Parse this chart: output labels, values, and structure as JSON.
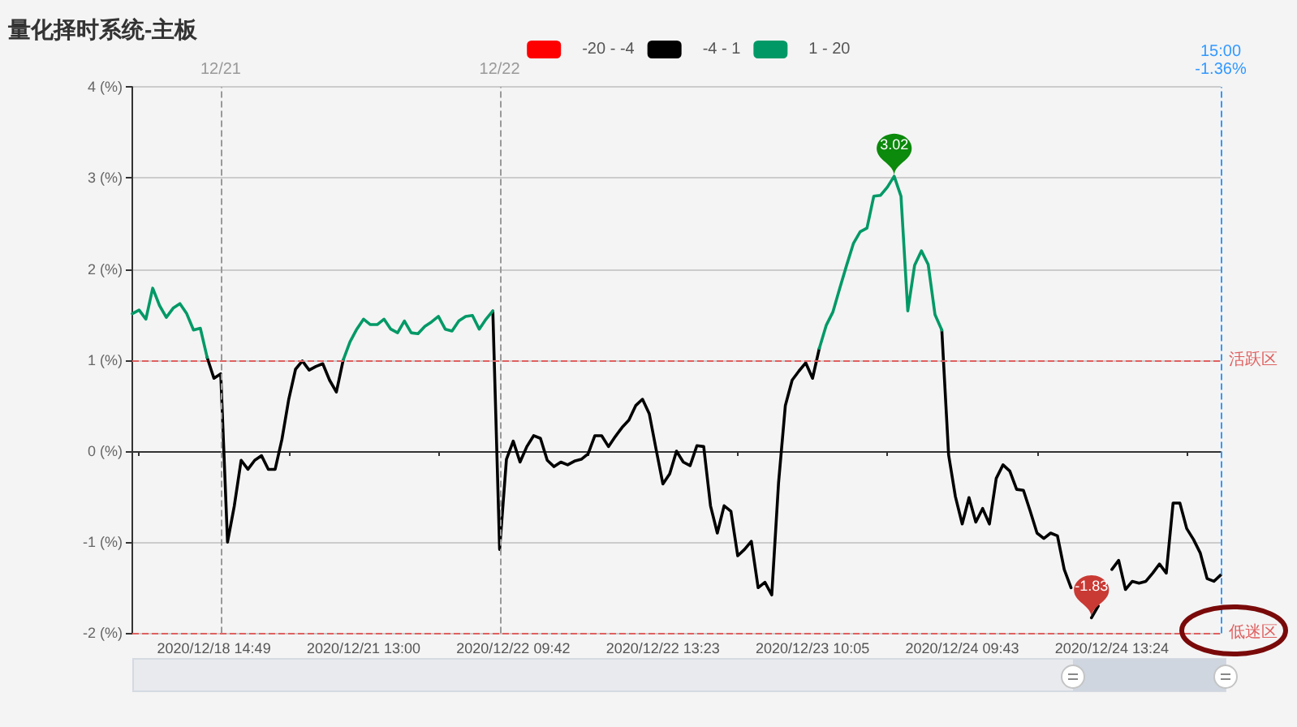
{
  "chart_data": {
    "type": "line",
    "title": "量化择时系统-主板",
    "categories": [
      null,
      null,
      null,
      null,
      null,
      null,
      null,
      null,
      null,
      null,
      null,
      null,
      "2020/12/18 14:49",
      null,
      null,
      null,
      null,
      null,
      null,
      null,
      null,
      null,
      null,
      null,
      null,
      null,
      null,
      null,
      null,
      null,
      null,
      null,
      null,
      null,
      "2020/12/21 13:00",
      null,
      null,
      null,
      null,
      null,
      null,
      null,
      null,
      null,
      null,
      null,
      null,
      null,
      null,
      null,
      null,
      null,
      null,
      null,
      null,
      null,
      "2020/12/22 09:42",
      null,
      null,
      null,
      null,
      null,
      null,
      null,
      null,
      null,
      null,
      null,
      null,
      null,
      null,
      null,
      null,
      null,
      null,
      null,
      null,
      null,
      "2020/12/22 13:23",
      null,
      null,
      null,
      null,
      null,
      null,
      null,
      null,
      null,
      null,
      null,
      null,
      null,
      null,
      null,
      null,
      null,
      null,
      null,
      null,
      null,
      "2020/12/23 10:05",
      null,
      null,
      null,
      null,
      null,
      null,
      null,
      null,
      null,
      null,
      null,
      null,
      null,
      null,
      null,
      null,
      null,
      null,
      null,
      null,
      null,
      "2020/12/24 09:43",
      null,
      null,
      null,
      null,
      null,
      null,
      null,
      null,
      null,
      null,
      null,
      null,
      null,
      null,
      null,
      null,
      null,
      null,
      null,
      null,
      null,
      "2020/12/24 13:24",
      null,
      null,
      null,
      null,
      null,
      null,
      null,
      null,
      null,
      null,
      null,
      null,
      null,
      null,
      null,
      null
    ],
    "ylim": [
      -2,
      4
    ],
    "yticks": [
      {
        "value": -2,
        "label": "-2 (%)"
      },
      {
        "value": -1,
        "label": "-1 (%)"
      },
      {
        "value": 0,
        "label": "0 (%)"
      },
      {
        "value": 1,
        "label": "1 (%)"
      },
      {
        "value": 2,
        "label": "2 (%)"
      },
      {
        "value": 3,
        "label": "3 (%)"
      },
      {
        "value": 4,
        "label": "4 (%)"
      }
    ],
    "grid": "y",
    "legend": "top",
    "series": [
      {
        "name": "-20 - -4",
        "color": "#ff0000",
        "values": [
          null,
          null,
          null,
          null,
          null,
          null,
          null,
          null,
          null,
          null,
          null,
          null,
          null,
          null,
          null,
          null,
          null,
          null,
          null,
          null,
          null,
          null,
          null,
          null,
          null,
          null,
          null,
          null,
          null,
          null,
          null,
          null,
          null,
          null,
          null,
          null,
          null,
          null,
          null,
          null,
          null,
          null,
          null,
          null,
          null,
          null,
          null,
          null,
          null,
          null,
          null,
          null,
          null,
          null,
          null,
          null,
          null,
          null,
          null,
          null,
          null,
          null,
          null,
          null,
          null,
          null,
          null,
          null,
          null,
          null,
          null,
          null,
          null,
          null,
          null,
          null,
          null,
          null,
          null,
          null,
          null,
          null,
          null,
          null,
          null,
          null,
          null,
          null,
          null,
          null,
          null,
          null,
          null,
          null,
          null,
          null,
          null,
          null,
          null,
          null,
          null,
          null,
          null,
          null,
          null,
          null,
          null,
          null,
          null,
          null,
          null,
          null,
          null,
          null,
          null,
          null,
          null,
          null,
          null,
          null,
          null,
          null,
          null,
          null,
          null,
          null,
          null,
          null,
          null,
          null,
          null,
          null,
          null,
          null,
          null,
          null,
          null,
          null,
          null,
          null,
          null,
          null,
          null,
          null,
          null,
          null,
          null,
          null,
          null,
          null,
          null,
          null,
          null,
          null,
          null,
          null,
          null,
          null,
          null,
          null,
          null
        ]
      },
      {
        "name": "-4 - 1",
        "color": "#000000",
        "values": [
          null,
          null,
          null,
          null,
          null,
          null,
          null,
          null,
          null,
          null,
          null,
          1.03,
          0.8,
          0.85,
          -1.0,
          -0.6,
          -0.1,
          -0.2,
          -0.1,
          -0.05,
          -0.2,
          -0.2,
          0.13,
          0.57,
          0.9,
          0.99,
          0.89,
          0.93,
          0.96,
          0.78,
          0.65,
          1.0,
          null,
          null,
          null,
          null,
          null,
          null,
          null,
          null,
          null,
          null,
          null,
          null,
          null,
          null,
          null,
          null,
          null,
          null,
          null,
          null,
          null,
          1.54,
          -1.08,
          -0.09,
          0.11,
          -0.12,
          0.05,
          0.17,
          0.14,
          -0.1,
          -0.17,
          -0.12,
          -0.15,
          -0.11,
          -0.09,
          -0.03,
          0.17,
          0.17,
          0.05,
          0.16,
          0.26,
          0.34,
          0.5,
          0.57,
          0.41,
          0.02,
          -0.36,
          -0.25,
          0.0,
          -0.12,
          -0.16,
          0.06,
          0.05,
          -0.6,
          -0.9,
          -0.6,
          -0.66,
          -1.15,
          -1.08,
          -0.99,
          -1.5,
          -1.44,
          -1.58,
          -0.35,
          0.5,
          0.78,
          0.88,
          0.97,
          0.8,
          1.13,
          null,
          null,
          null,
          null,
          null,
          null,
          null,
          null,
          null,
          null,
          null,
          null,
          null,
          null,
          null,
          null,
          null,
          1.33,
          -0.04,
          -0.5,
          -0.8,
          -0.51,
          -0.78,
          -0.63,
          -0.8,
          -0.3,
          -0.15,
          -0.22,
          -0.42,
          -0.43,
          -0.66,
          -0.9,
          -0.96,
          -0.9,
          -0.93,
          -1.3,
          -1.5,
          null,
          null,
          -1.83,
          -1.7,
          null,
          -1.3,
          -1.2,
          -1.52,
          -1.43,
          -1.45,
          -1.43,
          -1.34,
          -1.24,
          -1.34,
          -0.57,
          -0.57,
          -0.85,
          -0.97,
          -1.12,
          -1.4,
          -1.43,
          -1.36
        ]
      },
      {
        "name": "1 - 20",
        "color": "#009966",
        "values": [
          1.51,
          1.55,
          1.45,
          1.79,
          1.6,
          1.47,
          1.57,
          1.62,
          1.51,
          1.33,
          1.35,
          1.03,
          null,
          null,
          null,
          null,
          null,
          null,
          null,
          null,
          null,
          null,
          null,
          null,
          null,
          null,
          null,
          null,
          null,
          null,
          null,
          1.0,
          1.2,
          1.34,
          1.45,
          1.39,
          1.39,
          1.45,
          1.34,
          1.3,
          1.43,
          1.3,
          1.29,
          1.37,
          1.42,
          1.48,
          1.34,
          1.32,
          1.43,
          1.48,
          1.49,
          1.34,
          1.45,
          1.54,
          null,
          null,
          null,
          null,
          null,
          null,
          null,
          null,
          null,
          null,
          null,
          null,
          null,
          null,
          null,
          null,
          null,
          null,
          null,
          null,
          null,
          null,
          null,
          null,
          null,
          null,
          null,
          null,
          null,
          null,
          null,
          null,
          null,
          null,
          null,
          null,
          null,
          null,
          null,
          null,
          null,
          null,
          null,
          null,
          null,
          null,
          null,
          1.13,
          1.38,
          1.53,
          1.79,
          2.04,
          2.28,
          2.41,
          2.45,
          2.8,
          2.81,
          2.9,
          3.02,
          2.8,
          1.54,
          2.04,
          2.2,
          2.05,
          1.5,
          1.33,
          null,
          null,
          null,
          null,
          null,
          null,
          null,
          null,
          null,
          null,
          null,
          null,
          null,
          null,
          null,
          null,
          null,
          null,
          null,
          null,
          null,
          null,
          null,
          null,
          null,
          null,
          null,
          null,
          null,
          null,
          null,
          null,
          null,
          null,
          null,
          null,
          null,
          null,
          null,
          null,
          null
        ]
      }
    ],
    "ref_lines": [
      {
        "axis": "y",
        "value": 1,
        "label": "活跃区",
        "color": "#e06060",
        "line_style": "dashed"
      },
      {
        "axis": "y",
        "value": -2,
        "label": "低迷区",
        "color": "#e06060",
        "line_style": "dashed"
      }
    ],
    "annotations": [
      "12/21",
      "12/22",
      "15:00\n-1.36%",
      {
        "text": "3.02",
        "y": 3.02
      },
      {
        "text": "-1.83",
        "y": -1.83
      }
    ]
  }
}
